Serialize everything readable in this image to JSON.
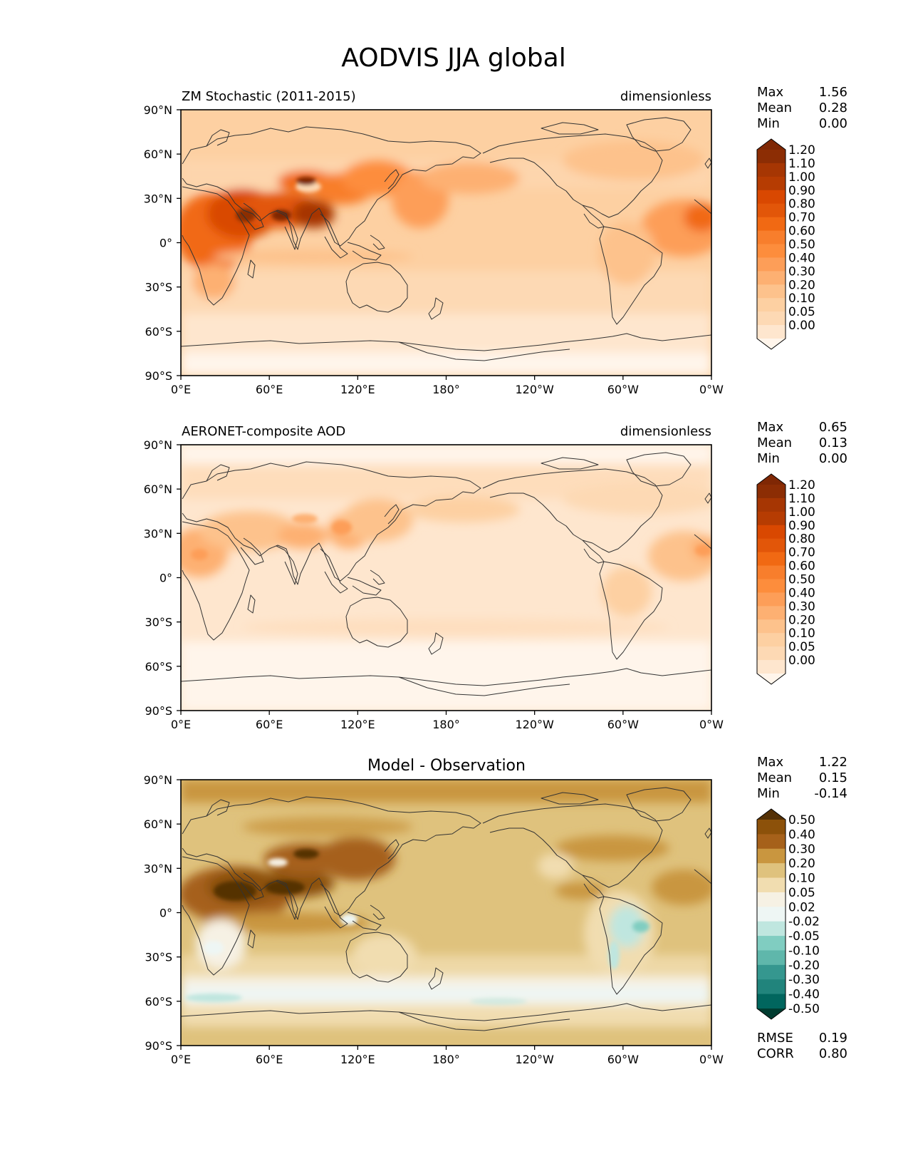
{
  "figure_title": "AODVIS JJA global",
  "lat_labels": [
    "90°N",
    "60°N",
    "30°N",
    "0°",
    "30°S",
    "60°S",
    "90°S"
  ],
  "lon_labels": [
    "0°E",
    "60°E",
    "120°E",
    "180°",
    "120°W",
    "60°W",
    "0°W"
  ],
  "stat_labels": {
    "max": "Max",
    "mean": "Mean",
    "min": "Min",
    "rmse": "RMSE",
    "corr": "CORR"
  },
  "colors": {
    "oranges": [
      "#fff5eb",
      "#fee6ce",
      "#fdd9b4",
      "#fdd0a2",
      "#fdc28c",
      "#fdb072",
      "#fd9e58",
      "#fd8d3c",
      "#f87e2c",
      "#f16913",
      "#e25609",
      "#d94801",
      "#b63c02",
      "#a63603",
      "#8c2d04",
      "#7f2704"
    ],
    "brbg": [
      "#003c30",
      "#01665e",
      "#21847c",
      "#35978f",
      "#5fb7ab",
      "#80cdc1",
      "#bfe6df",
      "#eef6f4",
      "#f6f1e4",
      "#f1ddb0",
      "#dfc27d",
      "#c9963f",
      "#a6611a",
      "#8c510a",
      "#543005"
    ],
    "coast": "#333333"
  },
  "panels": [
    {
      "left_title": "ZM Stochastic (2011-2015)",
      "center_title": "",
      "right_title": "dimensionless",
      "stats": {
        "max": "1.56",
        "mean": "0.28",
        "min": "0.00"
      },
      "colorbar_ticks": [
        "1.20",
        "1.10",
        "1.00",
        "0.90",
        "0.80",
        "0.70",
        "0.60",
        "0.50",
        "0.40",
        "0.30",
        "0.20",
        "0.10",
        "0.05",
        "0.00"
      ],
      "palette": "oranges",
      "extra_stats": null
    },
    {
      "left_title": "AERONET-composite AOD",
      "center_title": "",
      "right_title": "dimensionless",
      "stats": {
        "max": "0.65",
        "mean": "0.13",
        "min": "0.00"
      },
      "colorbar_ticks": [
        "1.20",
        "1.10",
        "1.00",
        "0.90",
        "0.80",
        "0.70",
        "0.60",
        "0.50",
        "0.40",
        "0.30",
        "0.20",
        "0.10",
        "0.05",
        "0.00"
      ],
      "palette": "oranges",
      "extra_stats": null
    },
    {
      "left_title": "",
      "center_title": "Model - Observation",
      "right_title": "",
      "stats": {
        "max": "1.22",
        "mean": "0.15",
        "min": "-0.14"
      },
      "colorbar_ticks": [
        "0.50",
        "0.40",
        "0.30",
        "0.20",
        "0.10",
        "0.05",
        "0.02",
        "-0.02",
        "-0.05",
        "-0.10",
        "-0.20",
        "-0.30",
        "-0.40",
        "-0.50"
      ],
      "palette": "brbg",
      "extra_stats": {
        "rmse": "0.19",
        "corr": "0.80"
      }
    }
  ]
}
